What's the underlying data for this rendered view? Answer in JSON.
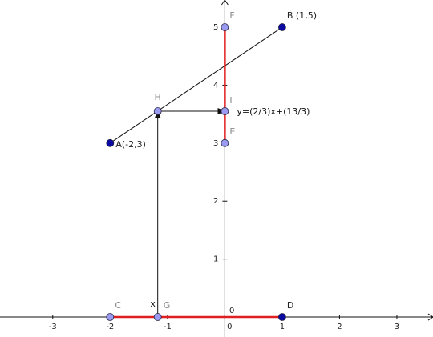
{
  "axes": {
    "xlim": [
      -3.92,
      3.63
    ],
    "ylim": [
      -0.345,
      5.47
    ],
    "xticks": [
      -3,
      -2,
      -1,
      0,
      1,
      2,
      3
    ],
    "yticks": [
      0,
      1,
      2,
      3,
      4,
      5
    ]
  },
  "points": [
    {
      "label": "A(-2,3)",
      "x": -2,
      "y": 3,
      "color": "#0a0aa0",
      "label_color": "#222"
    },
    {
      "label": "B (1,5)",
      "x": 1,
      "y": 5,
      "color": "#0a0aa0",
      "label_color": "#222"
    },
    {
      "label": "C",
      "x": -2,
      "y": 0,
      "color": "#9a9af0",
      "label_color": "#888"
    },
    {
      "label": "D",
      "x": 1,
      "y": 0,
      "color": "#0a0aa0",
      "label_color": "#222"
    },
    {
      "label": "E",
      "x": 0,
      "y": 3,
      "color": "#9a9af0",
      "label_color": "#888"
    },
    {
      "label": "F",
      "x": 0,
      "y": 5,
      "color": "#9a9af0",
      "label_color": "#888"
    },
    {
      "label": "G",
      "x": -1.17,
      "y": 0,
      "color": "#9a9af0",
      "label_color": "#888"
    },
    {
      "label": "H",
      "x": -1.17,
      "y": 3.55,
      "color": "#9a9af0",
      "label_color": "#888"
    },
    {
      "label": "I",
      "x": 0,
      "y": 3.55,
      "color": "#9a9af0",
      "label_color": "#888"
    }
  ],
  "equation": "y=(2/3)x+(13/3)",
  "x_label": "x",
  "line_color": "#111",
  "segment_color": "#e02020"
}
